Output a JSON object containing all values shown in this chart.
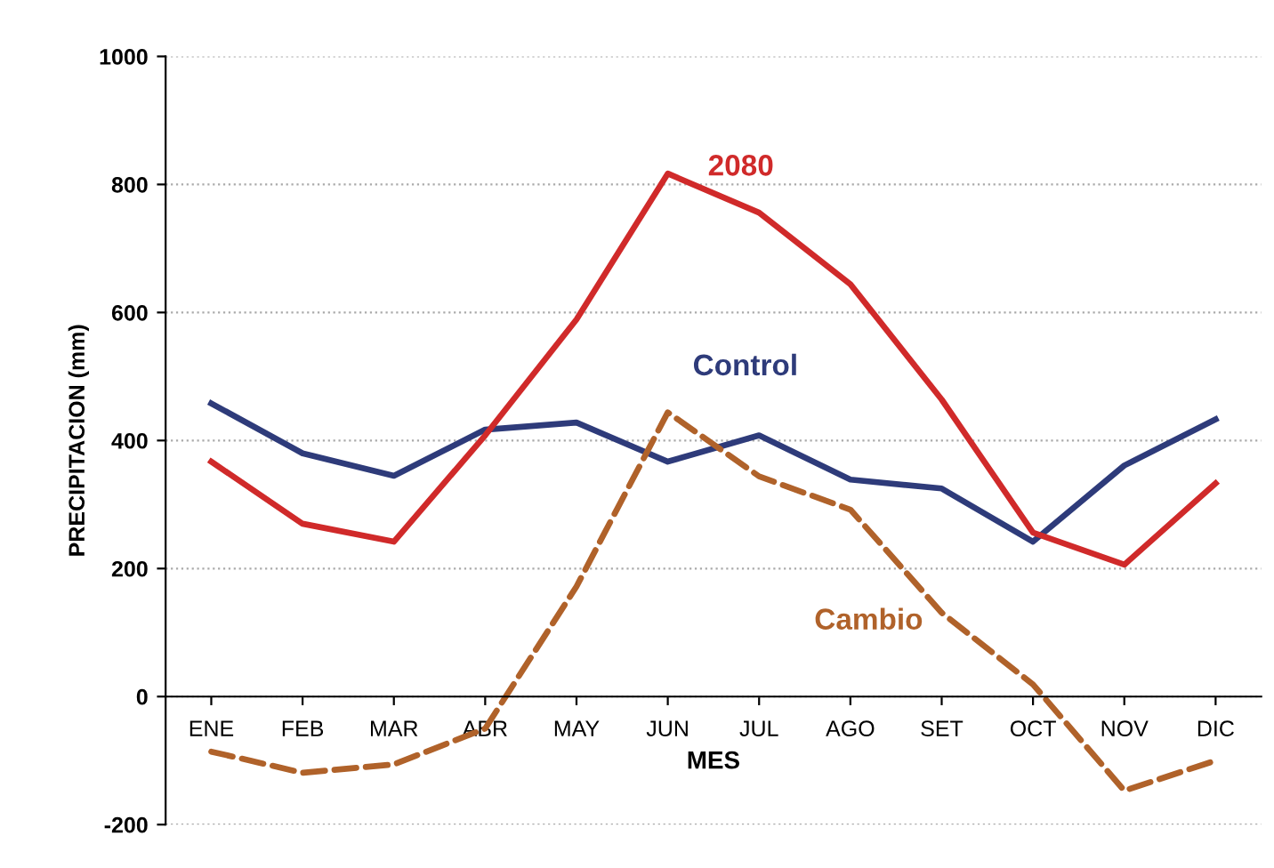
{
  "chart_data": {
    "type": "line",
    "xlabel": "MES",
    "ylabel": "PRECIPITACION (mm)",
    "categories": [
      "ENE",
      "FEB",
      "MAR",
      "ABR",
      "MAY",
      "JUN",
      "JUL",
      "AGO",
      "SET",
      "OCT",
      "NOV",
      "DIC"
    ],
    "ylim": [
      -200,
      1000
    ],
    "yticks": [
      -200,
      0,
      200,
      400,
      600,
      800,
      1000
    ],
    "grid": "y",
    "legend": false,
    "marker": "none",
    "series": [
      {
        "name": "Control",
        "color": "#2e3b7a",
        "line_style": "solid",
        "values": [
          458,
          380,
          345,
          417,
          428,
          367,
          408,
          339,
          325,
          242,
          361,
          433
        ]
      },
      {
        "name": "2080",
        "color": "#d02a2a",
        "line_style": "solid",
        "values": [
          367,
          270,
          242,
          408,
          589,
          817,
          756,
          644,
          464,
          256,
          206,
          333
        ]
      },
      {
        "name": "Cambio",
        "color": "#b0622a",
        "line_style": "dashed",
        "values": [
          -86,
          -119,
          -106,
          -50,
          172,
          444,
          344,
          292,
          131,
          19,
          -147,
          -100
        ]
      }
    ]
  }
}
